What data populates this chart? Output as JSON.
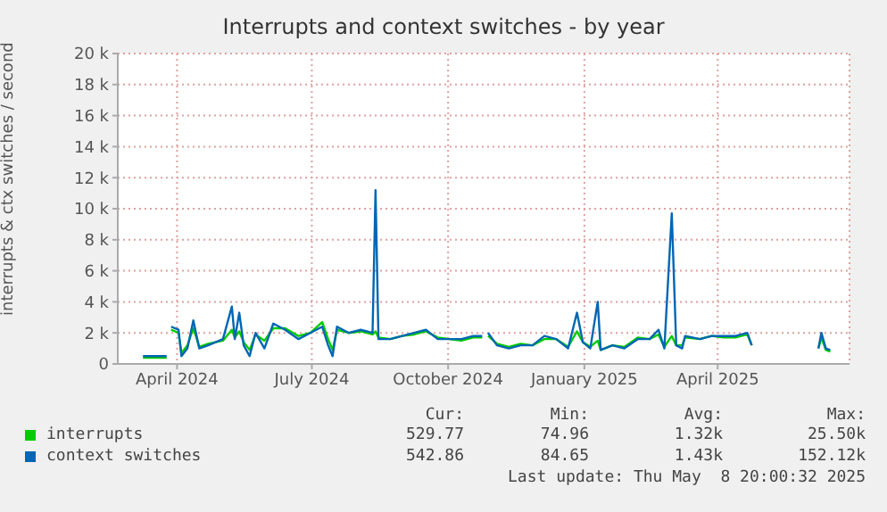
{
  "chart_data": {
    "type": "line",
    "title": "Interrupts and context switches - by year",
    "ylabel": "interrupts & ctx switches / second",
    "x": [
      "2024-03-09",
      "2024-03-25",
      "2024-03-27",
      "2024-03-28",
      "2024-04-02",
      "2024-04-04",
      "2024-04-08",
      "2024-04-12",
      "2024-04-16",
      "2024-04-22",
      "2024-05-02",
      "2024-05-08",
      "2024-05-10",
      "2024-05-13",
      "2024-05-16",
      "2024-05-20",
      "2024-05-24",
      "2024-05-30",
      "2024-06-05",
      "2024-06-13",
      "2024-06-22",
      "2024-06-30",
      "2024-07-08",
      "2024-07-12",
      "2024-07-15",
      "2024-07-18",
      "2024-07-26",
      "2024-08-03",
      "2024-08-11",
      "2024-08-13",
      "2024-08-15",
      "2024-08-23",
      "2024-08-31",
      "2024-09-08",
      "2024-09-16",
      "2024-09-24",
      "2024-10-02",
      "2024-10-10",
      "2024-10-18",
      "2024-10-24",
      "2024-10-26",
      "2024-10-28",
      "2024-11-03",
      "2024-11-11",
      "2024-11-19",
      "2024-11-27",
      "2024-12-05",
      "2024-12-13",
      "2024-12-21",
      "2024-12-27",
      "2024-12-31",
      "2025-01-05",
      "2025-01-10",
      "2025-01-12",
      "2025-01-20",
      "2025-01-28",
      "2025-02-06",
      "2025-02-14",
      "2025-02-20",
      "2025-02-24",
      "2025-03-01",
      "2025-03-04",
      "2025-03-08",
      "2025-03-10",
      "2025-03-20",
      "2025-03-28",
      "2025-04-05",
      "2025-04-13",
      "2025-04-21",
      "2025-04-24",
      "2025-04-26",
      "2025-06-08",
      "2025-06-10",
      "2025-06-13",
      "2025-06-16"
    ],
    "series": [
      {
        "name": "interrupts",
        "color": "#00cc00",
        "values": [
          400,
          400,
          null,
          2200,
          2000,
          700,
          1200,
          2300,
          1100,
          1300,
          1500,
          2200,
          1700,
          2100,
          1400,
          900,
          1900,
          1500,
          2300,
          2300,
          1800,
          2000,
          2700,
          1600,
          900,
          2200,
          2000,
          2100,
          1900,
          2100,
          1700,
          1600,
          1800,
          1900,
          2100,
          1700,
          1600,
          1500,
          1700,
          1700,
          null,
          1800,
          1300,
          1100,
          1300,
          1200,
          1600,
          1600,
          1100,
          2100,
          1400,
          1100,
          1500,
          900,
          1200,
          1100,
          1700,
          1600,
          1900,
          1100,
          1800,
          1200,
          1200,
          1700,
          1600,
          1800,
          1700,
          1700,
          1900,
          1200,
          null,
          1000,
          1700,
          900,
          800
        ]
      },
      {
        "name": "context switches",
        "color": "#0066b3",
        "values": [
          500,
          500,
          null,
          2400,
          2200,
          500,
          1000,
          2800,
          1000,
          1200,
          1600,
          3700,
          1600,
          3300,
          1200,
          500,
          2000,
          1000,
          2600,
          2200,
          1600,
          2000,
          2400,
          1200,
          500,
          2400,
          2000,
          2200,
          2000,
          11200,
          1600,
          1600,
          1800,
          2000,
          2200,
          1600,
          1600,
          1600,
          1800,
          1800,
          null,
          2000,
          1200,
          1000,
          1200,
          1200,
          1800,
          1600,
          1000,
          3300,
          1400,
          1000,
          4000,
          900,
          1200,
          1000,
          1600,
          1600,
          2200,
          1000,
          9700,
          1200,
          1000,
          1800,
          1600,
          1800,
          1800,
          1800,
          2000,
          1200,
          null,
          1000,
          2000,
          1000,
          900
        ]
      }
    ],
    "xlim": [
      "2024-02-21",
      "2025-06-29"
    ],
    "xticks": [
      {
        "value": "2024-04-01",
        "label": "April 2024"
      },
      {
        "value": "2024-07-01",
        "label": "July 2024"
      },
      {
        "value": "2024-10-01",
        "label": "October 2024"
      },
      {
        "value": "2025-01-01",
        "label": "January 2025"
      },
      {
        "value": "2025-04-01",
        "label": "April 2025"
      }
    ],
    "ylim": [
      0,
      20000
    ],
    "yticks": [
      0,
      {
        "value": 2000,
        "label": "2 k"
      },
      {
        "value": 4000,
        "label": "4 k"
      },
      {
        "value": 6000,
        "label": "6 k"
      },
      {
        "value": 8000,
        "label": "8 k"
      },
      {
        "value": 10000,
        "label": "10 k"
      },
      {
        "value": 12000,
        "label": "12 k"
      },
      {
        "value": 14000,
        "label": "14 k"
      },
      {
        "value": 16000,
        "label": "16 k"
      },
      {
        "value": 18000,
        "label": "18 k"
      },
      {
        "value": 20000,
        "label": "20 k"
      }
    ],
    "grid": true,
    "legend": "bottom",
    "annotations": [
      "Cur:",
      "Min:",
      "Avg:",
      "Max:",
      "529.77",
      "74.96",
      "1.32k",
      "25.50k",
      "542.86",
      "84.65",
      "1.43k",
      "152.12k",
      "Last update: Thu May  8 20:00:32 2025"
    ]
  }
}
